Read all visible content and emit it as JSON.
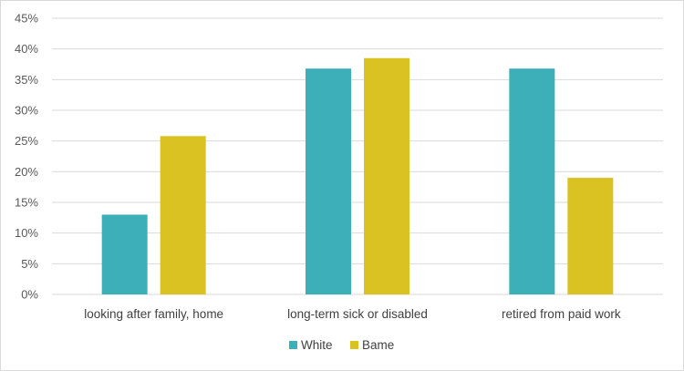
{
  "chart_data": {
    "type": "bar",
    "categories": [
      "looking after family, home",
      "long-term sick or disabled",
      "retired from paid work"
    ],
    "series": [
      {
        "name": "White",
        "values": [
          13,
          36.8,
          36.8
        ],
        "color": "#3DAFB9"
      },
      {
        "name": "Bame",
        "values": [
          25.8,
          38.5,
          19
        ],
        "color": "#D9C221"
      }
    ],
    "y_ticks": [
      "0%",
      "5%",
      "10%",
      "15%",
      "20%",
      "25%",
      "30%",
      "35%",
      "40%",
      "45%"
    ],
    "ylim": [
      0,
      45
    ],
    "grid": true,
    "legend_position": "bottom"
  }
}
